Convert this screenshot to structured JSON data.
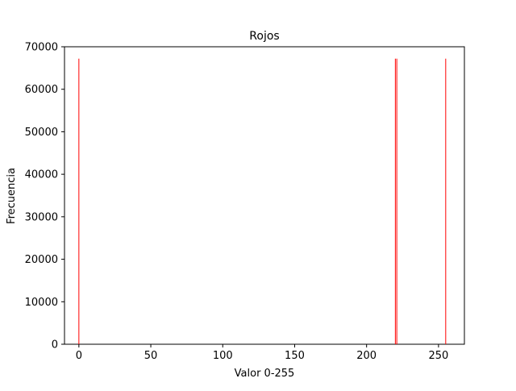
{
  "chart_data": {
    "type": "bar",
    "title": "Rojos",
    "xlabel": "Valor 0-255",
    "ylabel": "Frecuencia",
    "xlim": [
      -10,
      268
    ],
    "ylim": [
      0,
      70000
    ],
    "xticks": [
      0,
      50,
      100,
      150,
      200,
      250
    ],
    "yticks": [
      0,
      10000,
      20000,
      30000,
      40000,
      50000,
      60000,
      70000
    ],
    "grid": false,
    "series": [
      {
        "color": "#ff0000",
        "bars": [
          {
            "x": 0,
            "value": 67200
          },
          {
            "x": 220,
            "value": 67200
          },
          {
            "x": 221,
            "value": 67200
          },
          {
            "x": 255,
            "value": 67200
          }
        ]
      }
    ]
  }
}
